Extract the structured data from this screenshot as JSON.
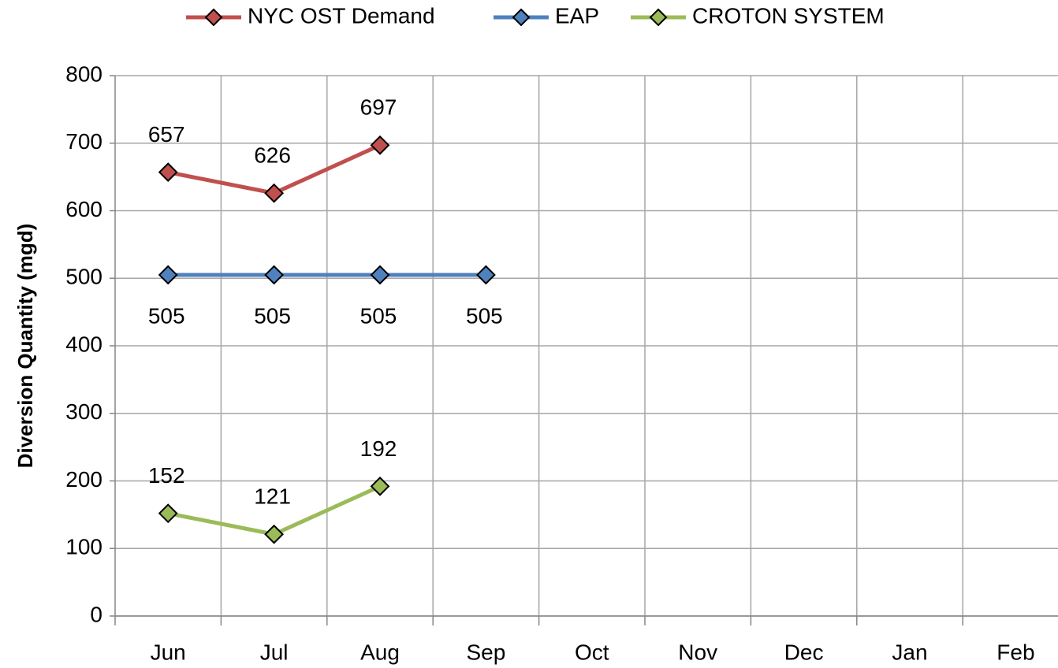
{
  "chart_data": {
    "type": "line",
    "y_label": "Diversion Quantity (mgd)",
    "categories": [
      "Jun",
      "Jul",
      "Aug",
      "Sep",
      "Oct",
      "Nov",
      "Dec",
      "Jan",
      "Feb"
    ],
    "series": [
      {
        "name": "NYC OST Demand",
        "color": "#c0504d",
        "label_position": "above",
        "values": [
          657,
          626,
          697,
          null,
          null,
          null,
          null,
          null,
          null
        ]
      },
      {
        "name": "EAP",
        "color": "#4f81bd",
        "label_position": "below",
        "values": [
          505,
          505,
          505,
          505,
          null,
          null,
          null,
          null,
          null
        ]
      },
      {
        "name": "CROTON SYSTEM",
        "color": "#9bbb59",
        "label_position": "above",
        "values": [
          152,
          121,
          192,
          null,
          null,
          null,
          null,
          null,
          null
        ]
      }
    ],
    "ylim": [
      0,
      800
    ],
    "yticks": [
      0,
      100,
      200,
      300,
      400,
      500,
      600,
      700,
      800
    ],
    "grid": true,
    "legend": "top"
  }
}
